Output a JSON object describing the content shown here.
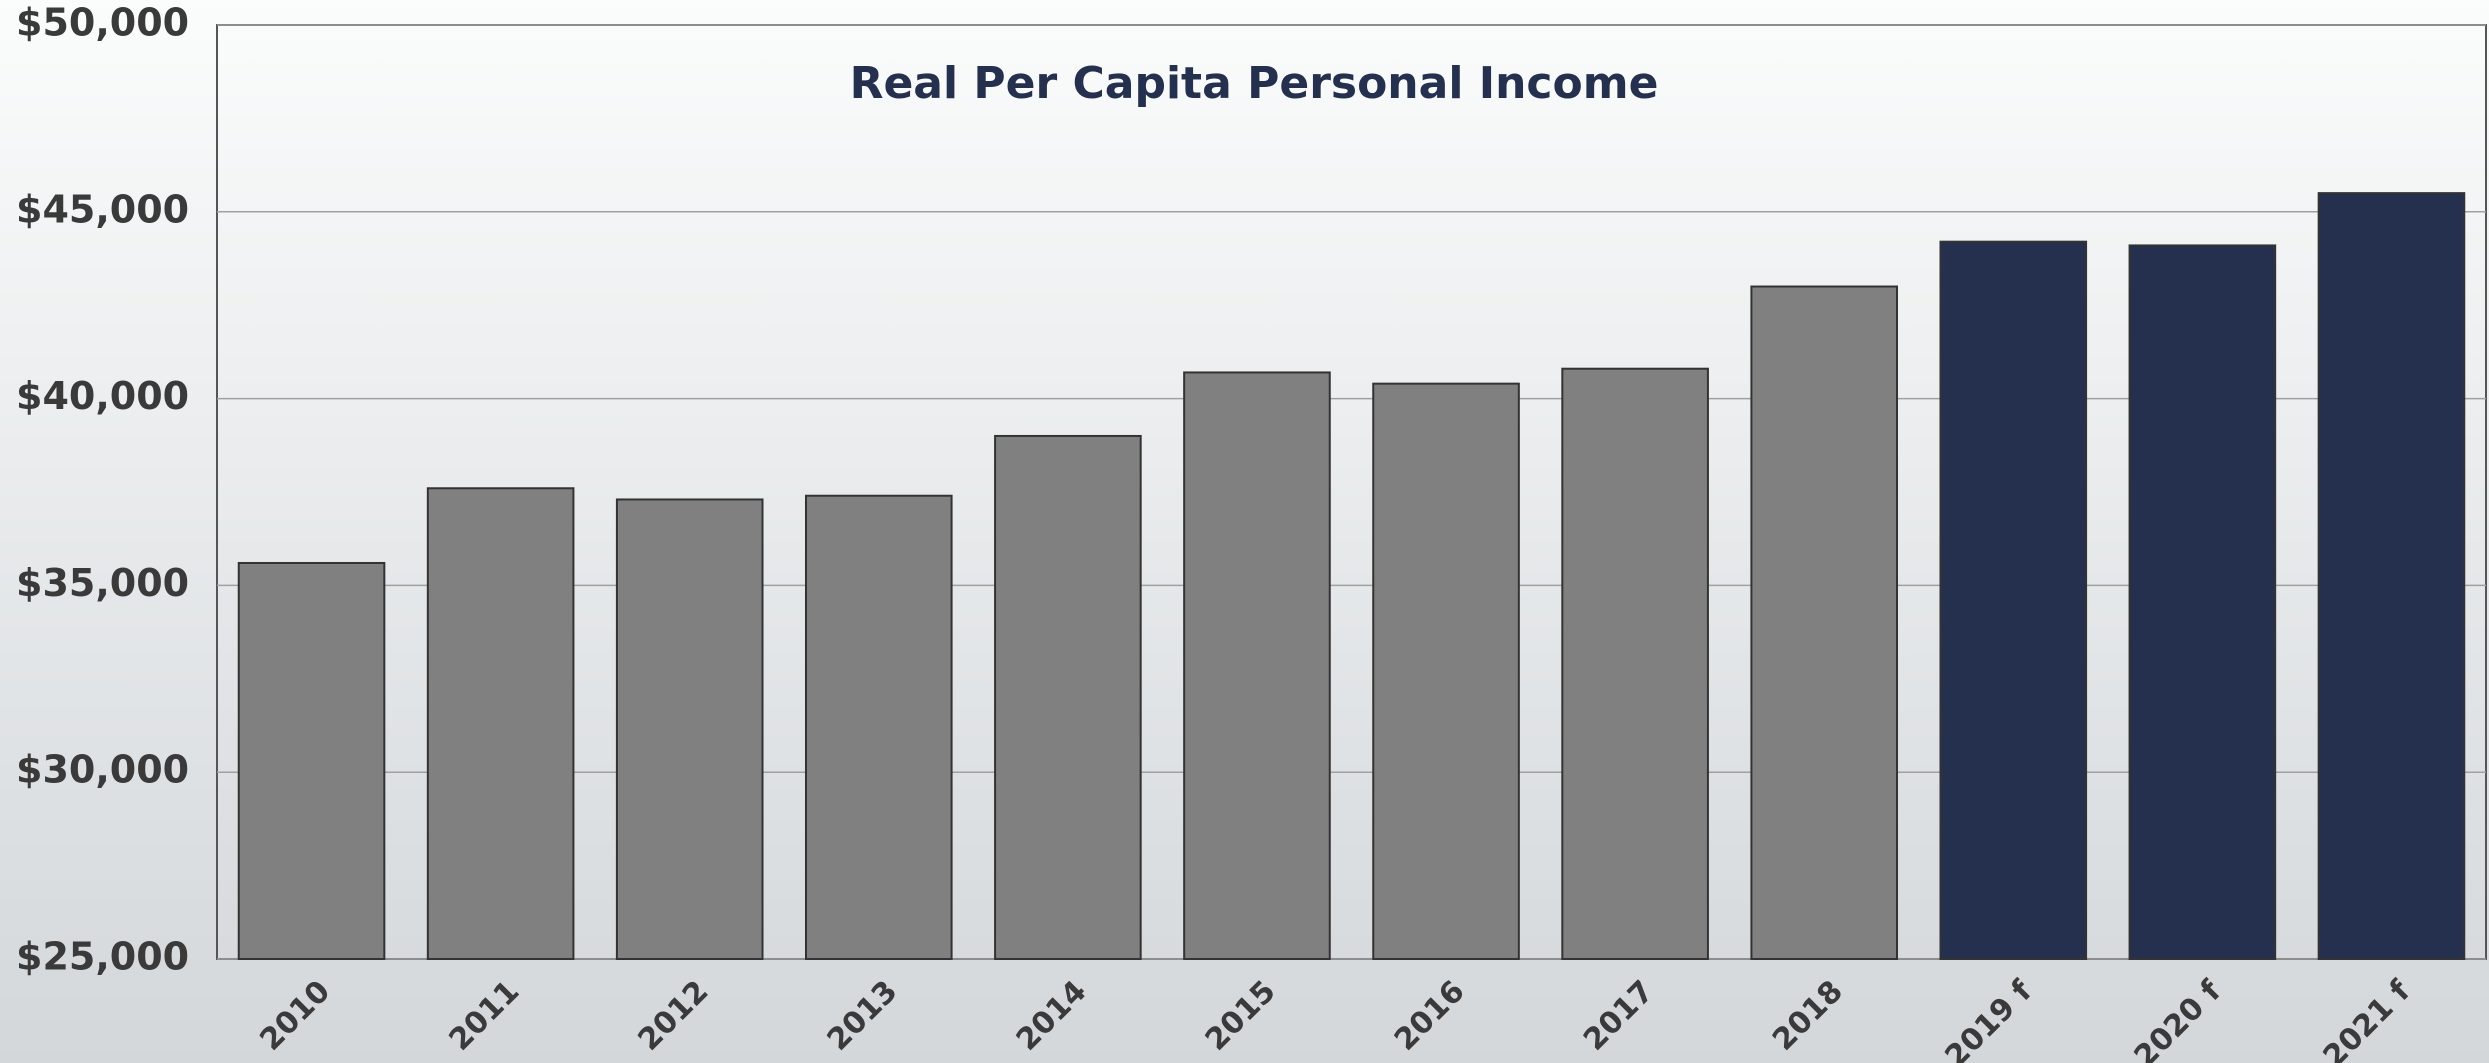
{
  "chart_data": {
    "type": "bar",
    "title": "Real Per Capita Personal Income",
    "categories": [
      "2010",
      "2011",
      "2012",
      "2013",
      "2014",
      "2015",
      "2016",
      "2017",
      "2018",
      "2019 f",
      "2020 f",
      "2021 f"
    ],
    "values": [
      35600,
      37600,
      37300,
      37400,
      39000,
      40700,
      40400,
      40800,
      43000,
      44200,
      44100,
      45500
    ],
    "colors": [
      "#808080",
      "#808080",
      "#808080",
      "#808080",
      "#808080",
      "#808080",
      "#808080",
      "#808080",
      "#808080",
      "#252f4e",
      "#252f4e",
      "#252f4e"
    ],
    "ylim": [
      25000,
      50000
    ],
    "yticks": [
      {
        "value": 25000,
        "label": "$25,000"
      },
      {
        "value": 30000,
        "label": "$30,000"
      },
      {
        "value": 35000,
        "label": "$35,000"
      },
      {
        "value": 40000,
        "label": "$40,000"
      },
      {
        "value": 45000,
        "label": "$45,000"
      },
      {
        "value": 50000,
        "label": "$50,000"
      }
    ],
    "grid": true
  }
}
